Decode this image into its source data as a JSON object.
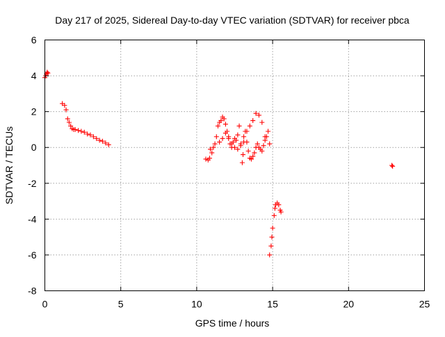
{
  "chart_data": {
    "type": "scatter",
    "title": "Day 217 of 2025, Sidereal Day-to-day VTEC variation (SDTVAR) for receiver pbca",
    "xlabel": "GPS time / hours",
    "ylabel": "SDTVAR / TECUs",
    "xlim": [
      0,
      25
    ],
    "ylim": [
      -8,
      6
    ],
    "x_ticks": [
      "0",
      "5",
      "10",
      "15",
      "20",
      "25"
    ],
    "y_ticks": [
      "-8",
      "-6",
      "-4",
      "-2",
      "0",
      "2",
      "4",
      "6"
    ],
    "grid": true,
    "marker": "+",
    "colors": {
      "series": "#ff0000",
      "grid": "#a0a0a0",
      "axis": "#000000"
    },
    "series": [
      {
        "name": "SDTVAR",
        "x": [
          0.0,
          0.05,
          0.1,
          0.15,
          0.2,
          1.15,
          1.3,
          1.4,
          1.5,
          1.6,
          1.7,
          1.8,
          1.9,
          2.0,
          2.2,
          2.4,
          2.6,
          2.8,
          3.0,
          3.2,
          3.4,
          3.6,
          3.8,
          4.0,
          4.2,
          10.6,
          10.75,
          10.85,
          10.9,
          11.0,
          11.1,
          11.2,
          11.3,
          11.4,
          11.5,
          11.6,
          11.7,
          11.8,
          11.9,
          12.0,
          12.1,
          12.2,
          12.3,
          12.4,
          12.5,
          12.6,
          12.7,
          12.8,
          12.9,
          13.0,
          13.05,
          13.1,
          13.2,
          13.3,
          13.4,
          13.5,
          13.6,
          13.7,
          13.8,
          13.9,
          14.0,
          14.1,
          14.2,
          14.3,
          14.4,
          14.5,
          14.6,
          14.7,
          14.8,
          11.5,
          11.7,
          11.9,
          12.1,
          12.3,
          12.5,
          12.7,
          12.9,
          13.1,
          13.3,
          13.5,
          13.7,
          13.9,
          14.1,
          14.3,
          14.5,
          14.8,
          14.9,
          14.95,
          15.0,
          15.1,
          15.15,
          15.2,
          15.3,
          15.4,
          15.5,
          15.55,
          22.85,
          22.9
        ],
        "y": [
          3.9,
          4.0,
          4.1,
          4.2,
          4.15,
          2.45,
          2.35,
          2.1,
          1.6,
          1.4,
          1.2,
          1.05,
          1.0,
          1.0,
          0.95,
          0.9,
          0.85,
          0.75,
          0.7,
          0.6,
          0.5,
          0.4,
          0.35,
          0.25,
          0.15,
          -0.65,
          -0.7,
          -0.6,
          -0.1,
          -0.3,
          0.0,
          0.2,
          0.6,
          1.2,
          1.4,
          1.5,
          1.7,
          1.6,
          1.3,
          0.9,
          0.5,
          0.2,
          0.0,
          0.3,
          0.5,
          0.4,
          0.7,
          1.2,
          0.2,
          -0.85,
          -0.4,
          0.6,
          0.9,
          0.3,
          -0.2,
          -0.6,
          -0.65,
          -0.5,
          -0.3,
          0.0,
          0.2,
          0.0,
          -0.1,
          -0.2,
          0.1,
          0.4,
          0.6,
          0.9,
          0.2,
          0.3,
          0.5,
          0.8,
          0.6,
          0.2,
          0.0,
          -0.1,
          0.1,
          0.3,
          0.9,
          1.2,
          1.5,
          1.9,
          1.8,
          1.4,
          0.6,
          -6.0,
          -5.5,
          -5.0,
          -4.5,
          -3.8,
          -3.4,
          -3.2,
          -3.1,
          -3.2,
          -3.5,
          -3.6,
          -1.0,
          -1.05
        ]
      }
    ]
  }
}
